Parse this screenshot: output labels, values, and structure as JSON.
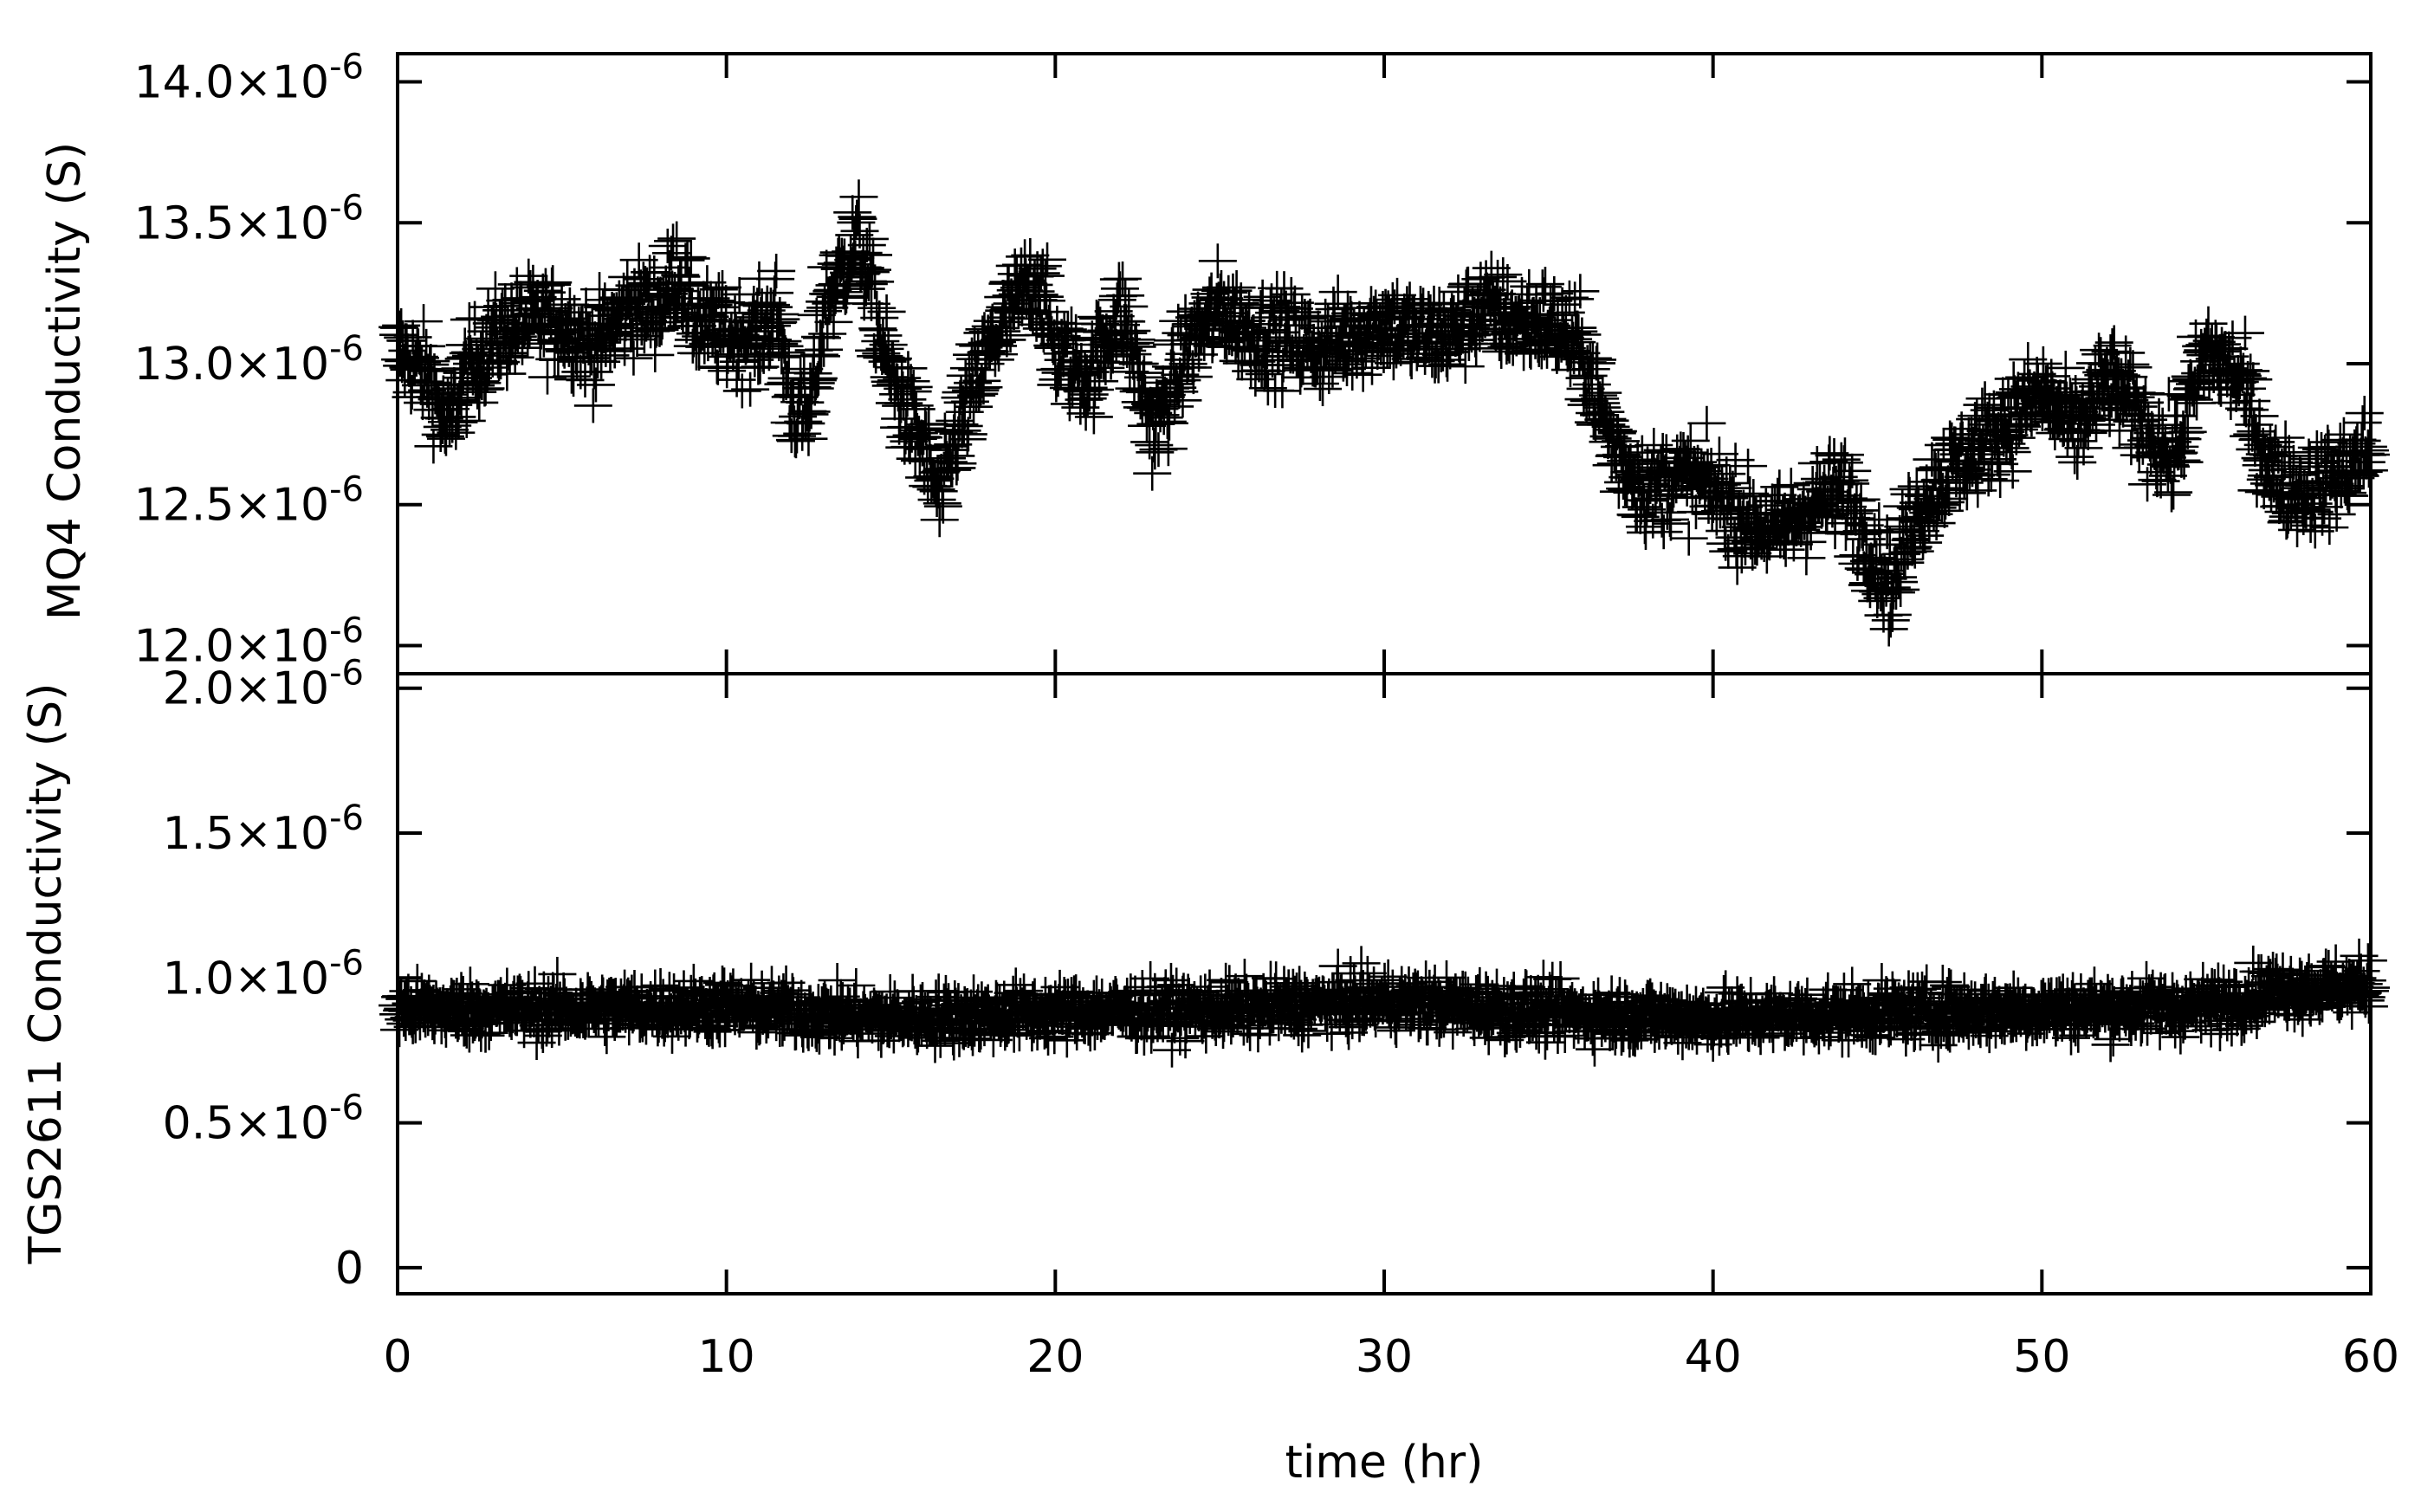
{
  "chart_data": [
    {
      "type": "scatter",
      "panel": "top",
      "ylabel": "MQ4 Conductivity (S)",
      "xlabel": "",
      "xlim": [
        0,
        60
      ],
      "ylim": [
        1.19e-05,
        1.41e-05
      ],
      "x_ticks": [
        0,
        10,
        20,
        30,
        40,
        50,
        60
      ],
      "y_ticks": [
        {
          "value": 1.2e-05,
          "mantissa": "12.0×10",
          "exp": "-6"
        },
        {
          "value": 1.25e-05,
          "mantissa": "12.5×10",
          "exp": "-6"
        },
        {
          "value": 1.3e-05,
          "mantissa": "13.0×10",
          "exp": "-6"
        },
        {
          "value": 1.35e-05,
          "mantissa": "13.5×10",
          "exp": "-6"
        },
        {
          "value": 1.4e-05,
          "mantissa": "14.0×10",
          "exp": "-6"
        }
      ],
      "marker": "+",
      "series": [
        {
          "x": [
            0,
            1,
            1.5,
            2,
            3,
            4,
            5,
            6,
            7,
            8,
            8.5,
            9,
            10,
            11,
            11.5,
            12,
            12.5,
            13,
            14,
            15,
            16,
            16.5,
            17,
            18,
            19,
            19.5,
            20,
            21,
            22,
            23,
            24,
            25,
            26,
            27,
            28,
            29,
            30,
            31,
            32,
            33,
            34,
            35,
            36,
            37,
            38,
            39,
            40,
            41,
            42,
            43,
            44,
            45,
            45.5,
            46,
            47,
            48,
            49,
            50,
            51,
            52,
            53,
            54,
            55,
            56,
            57,
            58,
            59,
            60
          ],
          "y": [
            1.305e-05,
            1.295e-05,
            1.275e-05,
            1.295e-05,
            1.31e-05,
            1.315e-05,
            1.315e-05,
            1.305e-05,
            1.32e-05,
            1.32e-05,
            1.335e-05,
            1.315e-05,
            1.31e-05,
            1.31e-05,
            1.32e-05,
            1.285e-05,
            1.28e-05,
            1.32e-05,
            1.345e-05,
            1.295e-05,
            1.27e-05,
            1.25e-05,
            1.275e-05,
            1.305e-05,
            1.325e-05,
            1.33e-05,
            1.305e-05,
            1.295e-05,
            1.32e-05,
            1.275e-05,
            1.305e-05,
            1.32e-05,
            1.31e-05,
            1.31e-05,
            1.305e-05,
            1.31e-05,
            1.315e-05,
            1.31e-05,
            1.31e-05,
            1.32e-05,
            1.315e-05,
            1.315e-05,
            1.305e-05,
            1.27e-05,
            1.255e-05,
            1.26e-05,
            1.255e-05,
            1.245e-05,
            1.24e-05,
            1.25e-05,
            1.255e-05,
            1.23e-05,
            1.22e-05,
            1.245e-05,
            1.26e-05,
            1.27e-05,
            1.28e-05,
            1.29e-05,
            1.275e-05,
            1.295e-05,
            1.28e-05,
            1.265e-05,
            1.305e-05,
            1.295e-05,
            1.26e-05,
            1.255e-05,
            1.26e-05,
            1.27e-05
          ],
          "noise": 1.3e-07
        }
      ]
    },
    {
      "type": "scatter",
      "panel": "bottom",
      "ylabel": "TGS2611 Conductivity (S)",
      "xlabel": "time (hr)",
      "xlim": [
        0,
        60
      ],
      "ylim": [
        -9e-08,
        2.05e-06
      ],
      "x_ticks": [
        0,
        10,
        20,
        30,
        40,
        50,
        60
      ],
      "y_ticks": [
        {
          "value": 0,
          "mantissa": "0",
          "exp": ""
        },
        {
          "value": 5e-07,
          "mantissa": "0.5×10",
          "exp": "-6"
        },
        {
          "value": 1e-06,
          "mantissa": "1.0×10",
          "exp": "-6"
        },
        {
          "value": 1.5e-06,
          "mantissa": "1.5×10",
          "exp": "-6"
        },
        {
          "value": 2e-06,
          "mantissa": "2.0×10",
          "exp": "-6"
        }
      ],
      "marker": "+",
      "series": [
        {
          "x": [
            0,
            5,
            10,
            15,
            20,
            25,
            30,
            35,
            40,
            45,
            50,
            55,
            57,
            60
          ],
          "y": [
            8.9e-07,
            8.9e-07,
            9e-07,
            8.6e-07,
            8.8e-07,
            8.9e-07,
            9.2e-07,
            8.8e-07,
            8.6e-07,
            8.8e-07,
            8.9e-07,
            9e-07,
            9.6e-07,
            9.7e-07
          ],
          "noise": 7.5e-08
        }
      ]
    }
  ]
}
